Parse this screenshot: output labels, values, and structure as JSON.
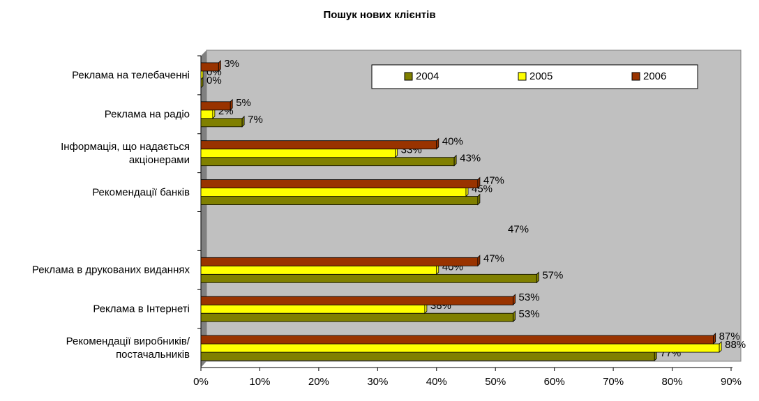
{
  "chart_data": {
    "type": "bar",
    "orientation": "horizontal",
    "title": "Пошук нових клієнтів",
    "categories": [
      "Реклама на телебаченні",
      "Реклама на радіо",
      "Інформація, що надається акціонерами",
      "Рекомендації банків",
      null,
      "Реклама в друкованих виданнях",
      "Реклама в Інтернеті",
      "Рекомендації виробників/постачальників"
    ],
    "series": [
      {
        "name": "2004",
        "color": "#808000",
        "values": [
          0,
          7,
          43,
          47,
          null,
          57,
          53,
          77
        ],
        "value_labels": [
          "0%",
          "7%",
          "43%",
          null,
          null,
          "57%",
          "53%",
          "77%"
        ]
      },
      {
        "name": "2005",
        "color": "#ffff00",
        "values": [
          0,
          2,
          33,
          45,
          null,
          40,
          38,
          88
        ],
        "value_labels": [
          "0%",
          "2%",
          "33%",
          "45%",
          null,
          "40%",
          "38%",
          "88%"
        ]
      },
      {
        "name": "2006",
        "color": "#993300",
        "values": [
          3,
          5,
          40,
          47,
          null,
          47,
          53,
          87
        ],
        "value_labels": [
          "3%",
          "5%",
          "40%",
          "47%",
          null,
          "47%",
          "53%",
          "87%"
        ]
      }
    ],
    "annotations": [
      "47%"
    ],
    "xlim": [
      0,
      90
    ],
    "xticks": [
      {
        "value": 0,
        "label": "0%"
      },
      {
        "value": 10,
        "label": "10%"
      },
      {
        "value": 20,
        "label": "20%"
      },
      {
        "value": 30,
        "label": "30%"
      },
      {
        "value": 40,
        "label": "40%"
      },
      {
        "value": 50,
        "label": "50%"
      },
      {
        "value": 60,
        "label": "60%"
      },
      {
        "value": 70,
        "label": "70%"
      },
      {
        "value": 80,
        "label": "80%"
      },
      {
        "value": 90,
        "label": "90%"
      }
    ],
    "legend": "top-right"
  }
}
